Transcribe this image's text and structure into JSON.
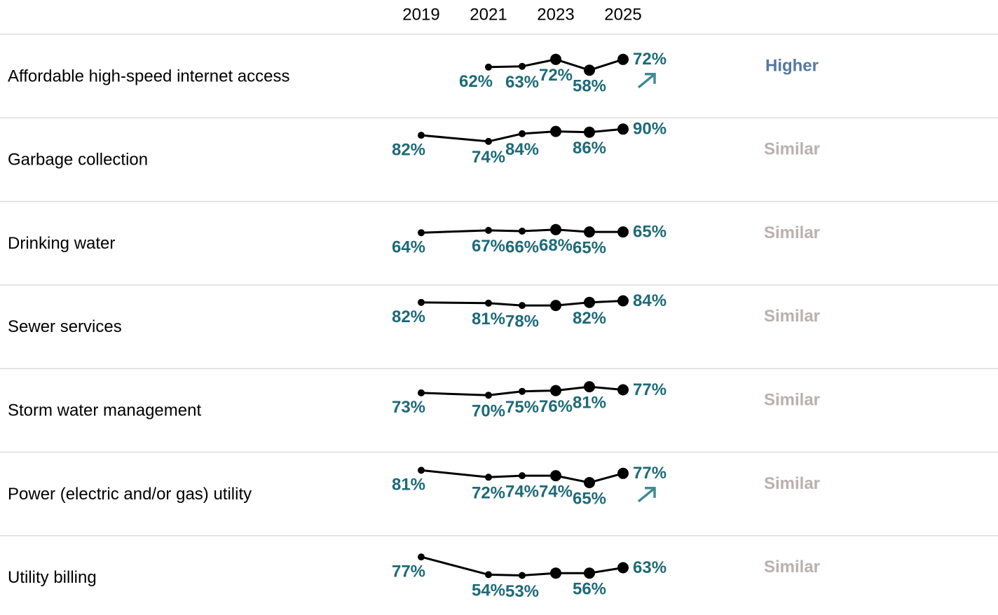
{
  "chart_data": {
    "type": "line",
    "xticks": [
      2019,
      2021,
      2023,
      2025
    ],
    "xlim": [
      2019,
      2025
    ],
    "ylim": [
      0,
      100
    ],
    "line_color": "#000000",
    "label_color": "#1d6a78",
    "arrow_color": "#3f8a96",
    "comparison_colors": {
      "Higher": "#5578a0",
      "Similar": "#bab0ac"
    },
    "series": [
      {
        "name": "Affordable high-speed internet access",
        "x": [
          2021,
          2022,
          2023,
          2024,
          2025
        ],
        "values": [
          62,
          63,
          72,
          58,
          72
        ],
        "value_labels": [
          "62%",
          "63%",
          "72%",
          "58%",
          "72%"
        ],
        "comparison": "Higher",
        "arrow": true
      },
      {
        "name": "Garbage collection",
        "x": [
          2019,
          2021,
          2022,
          2023,
          2024,
          2025
        ],
        "values": [
          82,
          74,
          84,
          87,
          86,
          90
        ],
        "value_labels": [
          "82%",
          "74%",
          "84%",
          null,
          "86%",
          "90%"
        ],
        "comparison": "Similar",
        "arrow": false
      },
      {
        "name": "Drinking water",
        "x": [
          2019,
          2021,
          2022,
          2023,
          2024,
          2025
        ],
        "values": [
          64,
          67,
          66,
          68,
          65,
          65
        ],
        "value_labels": [
          "64%",
          "67%",
          "66%",
          "68%",
          "65%",
          "65%"
        ],
        "comparison": "Similar",
        "arrow": false
      },
      {
        "name": "Sewer services",
        "x": [
          2019,
          2021,
          2022,
          2023,
          2024,
          2025
        ],
        "values": [
          82,
          81,
          78,
          78,
          82,
          84
        ],
        "value_labels": [
          "82%",
          "81%",
          "78%",
          null,
          "82%",
          "84%"
        ],
        "comparison": "Similar",
        "arrow": false
      },
      {
        "name": "Storm water management",
        "x": [
          2019,
          2021,
          2022,
          2023,
          2024,
          2025
        ],
        "values": [
          73,
          70,
          75,
          76,
          81,
          77
        ],
        "value_labels": [
          "73%",
          "70%",
          "75%",
          "76%",
          "81%",
          "77%"
        ],
        "comparison": "Similar",
        "arrow": false
      },
      {
        "name": "Power (electric and/or gas) utility",
        "x": [
          2019,
          2021,
          2022,
          2023,
          2024,
          2025
        ],
        "values": [
          81,
          72,
          74,
          74,
          65,
          77
        ],
        "value_labels": [
          "81%",
          "72%",
          "74%",
          "74%",
          "65%",
          "77%"
        ],
        "comparison": "Similar",
        "arrow": true
      },
      {
        "name": "Utility billing",
        "x": [
          2019,
          2021,
          2022,
          2023,
          2024,
          2025
        ],
        "values": [
          77,
          54,
          53,
          56,
          56,
          63
        ],
        "value_labels": [
          "77%",
          "54%",
          "53%",
          null,
          "56%",
          "63%"
        ],
        "comparison": "Similar",
        "arrow": false
      }
    ]
  }
}
